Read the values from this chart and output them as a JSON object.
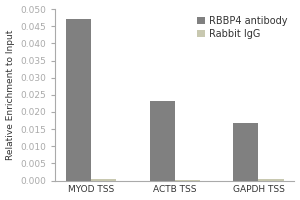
{
  "categories": [
    "MYOD TSS",
    "ACTB TSS",
    "GAPDH TSS"
  ],
  "rbbp4_values": [
    0.047,
    0.0232,
    0.0168
  ],
  "rabbit_igg_values": [
    0.0005,
    0.0003,
    0.0005
  ],
  "bar_width": 0.3,
  "rbbp4_color": "#808080",
  "rabbit_color": "#c8c8b0",
  "ylabel": "Relative Enrichment to Input",
  "ylim": [
    0,
    0.05
  ],
  "yticks": [
    0.0,
    0.005,
    0.01,
    0.015,
    0.02,
    0.025,
    0.03,
    0.035,
    0.04,
    0.045,
    0.05
  ],
  "legend_labels": [
    "RBBP4 antibody",
    "Rabbit IgG"
  ],
  "background_color": "#ffffff",
  "axis_fontsize": 6.5,
  "tick_fontsize": 6.5,
  "legend_fontsize": 7
}
